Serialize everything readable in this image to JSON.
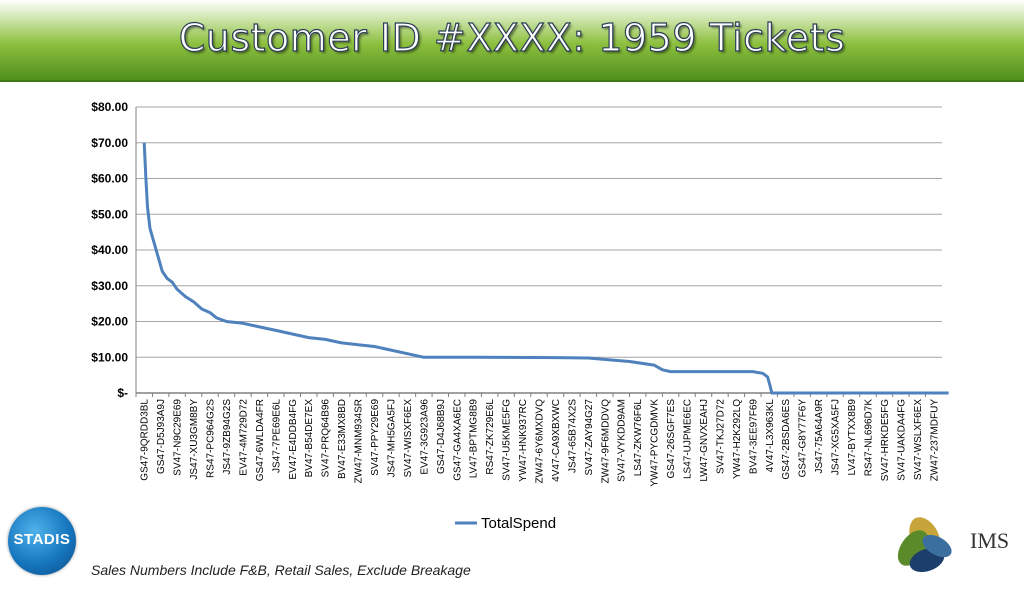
{
  "header": {
    "title": "Customer ID #XXXX: 1959 Tickets"
  },
  "footer": {
    "note": "Sales Numbers Include F&B, Retail Sales, Exclude Breakage"
  },
  "logos": {
    "left": "STADIS",
    "right": "IMS"
  },
  "colors": {
    "series": "#4f81bd",
    "banner": "#6aa532",
    "grid": "#a6a6a6"
  },
  "chart_data": {
    "type": "line",
    "ylim": [
      0,
      80
    ],
    "grid": true,
    "legend_placement": "bottom",
    "y_ticks": [
      {
        "value": 0,
        "label": "$-"
      },
      {
        "value": 10,
        "label": "$10.00"
      },
      {
        "value": 20,
        "label": "$20.00"
      },
      {
        "value": 30,
        "label": "$30.00"
      },
      {
        "value": 40,
        "label": "$40.00"
      },
      {
        "value": 50,
        "label": "$50.00"
      },
      {
        "value": 60,
        "label": "$60.00"
      },
      {
        "value": 70,
        "label": "$70.00"
      },
      {
        "value": 80,
        "label": "$80.00"
      }
    ],
    "categories": [
      "GS47-9QRDD3BL",
      "GS47-D5J93A9J",
      "SV47-N9C29E69",
      "JS47-XU3GM8BY",
      "RS47-PC964G2S",
      "JS47-9ZB94G2S",
      "EV47-4M729D72",
      "GS47-6WLDA4FR",
      "JS47-7PE69E6L",
      "EV47-E4DDB4FG",
      "BV47-B54DE7EX",
      "SV47-PRQ64B96",
      "BV47-E33MX8BD",
      "ZW47-MNM934SR",
      "SV47-PPY29E69",
      "JS47-MH5GA5FJ",
      "SV47-WISXF6EX",
      "EV47-3G923A96",
      "GS47-D4J68B9J",
      "GS47-GA4XA6EC",
      "LV47-BPTMG8B9",
      "RS47-ZK729E6L",
      "SV47-U5KME5FG",
      "YW47-HNK937RC",
      "ZW47-6Y6MXDVQ",
      "4V47-CA9XBXWC",
      "JS47-65B74X2S",
      "SV47-ZAY94G27",
      "ZW47-9F6MDDVQ",
      "SV47-VYKDD9AM",
      "LS47-ZKW76F6L",
      "YW47-PYCGDMVK",
      "GS47-26SGF7ES",
      "LS47-UJPME6EC",
      "LW47-GNVXEAHJ",
      "SV47-TKJ27D72",
      "YW47-H2K292LQ",
      "BV47-3EE97F69",
      "4V47-L3X963KL",
      "GS47-2BSDA6ES",
      "GS47-G8Y77F6Y",
      "JS47-75A64A9R",
      "JS47-XG5XA5FJ",
      "LV47-BYTXX8B9",
      "RS47-NL696D7K",
      "SV47-HRKDE5FG",
      "SV47-UAKDA4FG",
      "SV47-WSLXF6EX",
      "ZW47-237MDFUY"
    ],
    "series": [
      {
        "name": "TotalSpend",
        "points": [
          [
            0,
            70
          ],
          [
            0.1,
            60
          ],
          [
            0.2,
            52
          ],
          [
            0.35,
            46
          ],
          [
            0.6,
            42
          ],
          [
            0.85,
            38
          ],
          [
            1.1,
            34
          ],
          [
            1.4,
            32
          ],
          [
            1.7,
            31
          ],
          [
            2.0,
            29
          ],
          [
            2.5,
            27
          ],
          [
            3.0,
            25.5
          ],
          [
            3.5,
            23.5
          ],
          [
            4.0,
            22.5
          ],
          [
            4.4,
            21
          ],
          [
            5.0,
            20
          ],
          [
            6.0,
            19.5
          ],
          [
            7.0,
            18.5
          ],
          [
            8.0,
            17.5
          ],
          [
            9.0,
            16.5
          ],
          [
            10.0,
            15.5
          ],
          [
            11.0,
            15
          ],
          [
            12.0,
            14
          ],
          [
            13.0,
            13.5
          ],
          [
            14.0,
            13
          ],
          [
            15.0,
            12
          ],
          [
            16.0,
            11
          ],
          [
            17.0,
            10
          ],
          [
            20.0,
            10
          ],
          [
            25.0,
            9.9
          ],
          [
            27.0,
            9.8
          ],
          [
            28.5,
            9.2
          ],
          [
            29.5,
            8.8
          ],
          [
            31.0,
            7.8
          ],
          [
            31.5,
            6.5
          ],
          [
            32.0,
            6
          ],
          [
            37.0,
            6
          ],
          [
            37.6,
            5.5
          ],
          [
            37.9,
            4.5
          ],
          [
            38.05,
            2
          ],
          [
            38.15,
            0
          ],
          [
            48.9,
            0
          ]
        ]
      }
    ]
  }
}
